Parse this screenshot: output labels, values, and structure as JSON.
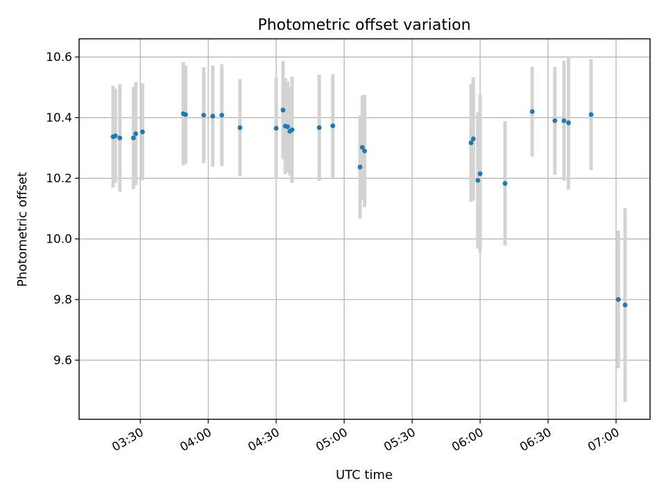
{
  "chart_data": {
    "type": "scatter",
    "title": "Photometric offset variation",
    "xlabel": "UTC time",
    "ylabel": "Photometric offset",
    "grid": true,
    "xlim": [
      "03:03",
      "07:15"
    ],
    "ylim": [
      9.405,
      10.66
    ],
    "x_ticks": [
      "03:30",
      "04:00",
      "04:30",
      "05:00",
      "05:30",
      "06:00",
      "06:30",
      "07:00"
    ],
    "y_ticks": [
      "9.6",
      "9.8",
      "10.0",
      "10.2",
      "10.4",
      "10.6"
    ],
    "series": [
      {
        "marker_color": "#1f77b4",
        "errorbar_color": "#d3d3d3",
        "points": [
          {
            "x": "03:18",
            "y": 10.337,
            "yerr": 0.168
          },
          {
            "x": "03:19",
            "y": 10.34,
            "yerr": 0.155
          },
          {
            "x": "03:21",
            "y": 10.333,
            "yerr": 0.177
          },
          {
            "x": "03:27",
            "y": 10.333,
            "yerr": 0.168
          },
          {
            "x": "03:28",
            "y": 10.347,
            "yerr": 0.17
          },
          {
            "x": "03:31",
            "y": 10.353,
            "yerr": 0.16
          },
          {
            "x": "03:49",
            "y": 10.413,
            "yerr": 0.17
          },
          {
            "x": "03:50",
            "y": 10.41,
            "yerr": 0.162
          },
          {
            "x": "03:58",
            "y": 10.408,
            "yerr": 0.158
          },
          {
            "x": "04:02",
            "y": 10.405,
            "yerr": 0.167
          },
          {
            "x": "04:06",
            "y": 10.408,
            "yerr": 0.168
          },
          {
            "x": "04:14",
            "y": 10.367,
            "yerr": 0.16
          },
          {
            "x": "04:30",
            "y": 10.365,
            "yerr": 0.167
          },
          {
            "x": "04:33",
            "y": 10.425,
            "yerr": 0.162
          },
          {
            "x": "04:34",
            "y": 10.372,
            "yerr": 0.158
          },
          {
            "x": "04:35",
            "y": 10.37,
            "yerr": 0.15
          },
          {
            "x": "04:36",
            "y": 10.355,
            "yerr": 0.145
          },
          {
            "x": "04:37",
            "y": 10.36,
            "yerr": 0.175
          },
          {
            "x": "04:49",
            "y": 10.367,
            "yerr": 0.175
          },
          {
            "x": "04:55",
            "y": 10.373,
            "yerr": 0.17
          },
          {
            "x": "05:07",
            "y": 10.237,
            "yerr": 0.17
          },
          {
            "x": "05:08",
            "y": 10.302,
            "yerr": 0.172
          },
          {
            "x": "05:09",
            "y": 10.29,
            "yerr": 0.185
          },
          {
            "x": "05:56",
            "y": 10.317,
            "yerr": 0.195
          },
          {
            "x": "05:57",
            "y": 10.33,
            "yerr": 0.203
          },
          {
            "x": "05:59",
            "y": 10.193,
            "yerr": 0.225
          },
          {
            "x": "06:00",
            "y": 10.215,
            "yerr": 0.26
          },
          {
            "x": "06:11",
            "y": 10.183,
            "yerr": 0.205
          },
          {
            "x": "06:23",
            "y": 10.42,
            "yerr": 0.148
          },
          {
            "x": "06:33",
            "y": 10.39,
            "yerr": 0.178
          },
          {
            "x": "06:37",
            "y": 10.39,
            "yerr": 0.198
          },
          {
            "x": "06:39",
            "y": 10.383,
            "yerr": 0.22
          },
          {
            "x": "06:49",
            "y": 10.41,
            "yerr": 0.183
          },
          {
            "x": "07:01",
            "y": 9.8,
            "yerr": 0.227
          },
          {
            "x": "07:04",
            "y": 9.782,
            "yerr": 0.32
          }
        ]
      }
    ]
  }
}
